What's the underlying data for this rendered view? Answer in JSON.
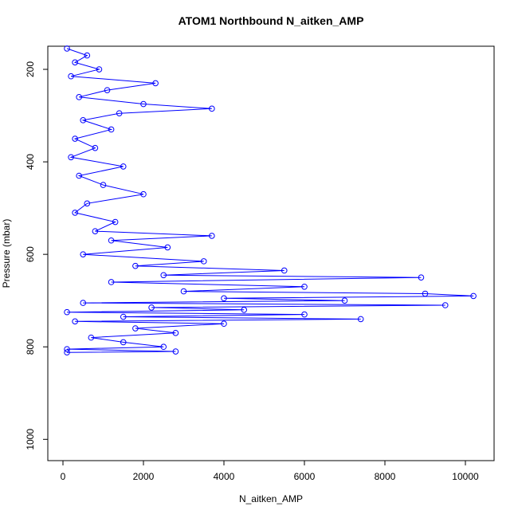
{
  "chart_data": {
    "type": "line",
    "title": "ATOM1 Northbound N_aitken_AMP",
    "xlabel": "N_aitken_AMP",
    "ylabel": "Pressure (mbar)",
    "color": "#0000ff",
    "markers": "circle-open",
    "yreverse": true,
    "xlim": [
      -376,
      10713
    ],
    "xticks": [
      0,
      2000,
      4000,
      6000,
      8000,
      10000
    ],
    "ylim": [
      150,
      1046
    ],
    "yticks": [
      200,
      400,
      600,
      800,
      1000
    ],
    "x": [
      100,
      600,
      300,
      900,
      200,
      2300,
      1100,
      400,
      2000,
      3700,
      1400,
      500,
      1200,
      300,
      800,
      200,
      1500,
      400,
      1000,
      2000,
      600,
      300,
      1300,
      800,
      3700,
      1200,
      2600,
      500,
      3500,
      1800,
      5500,
      2500,
      8900,
      1200,
      6000,
      3000,
      9000,
      10200,
      4000,
      7000,
      500,
      9500,
      2200,
      4500,
      100,
      6000,
      1500,
      7400,
      300,
      4000,
      1800,
      2800,
      700,
      1500,
      2500,
      100,
      2800,
      100
    ],
    "values": [
      155,
      170,
      185,
      200,
      215,
      230,
      245,
      260,
      275,
      285,
      295,
      310,
      330,
      350,
      370,
      390,
      410,
      430,
      450,
      470,
      490,
      510,
      530,
      550,
      560,
      570,
      585,
      600,
      615,
      625,
      635,
      645,
      650,
      660,
      670,
      680,
      685,
      690,
      695,
      700,
      705,
      710,
      715,
      720,
      725,
      730,
      735,
      740,
      745,
      750,
      760,
      770,
      780,
      790,
      800,
      805,
      810,
      812
    ]
  }
}
